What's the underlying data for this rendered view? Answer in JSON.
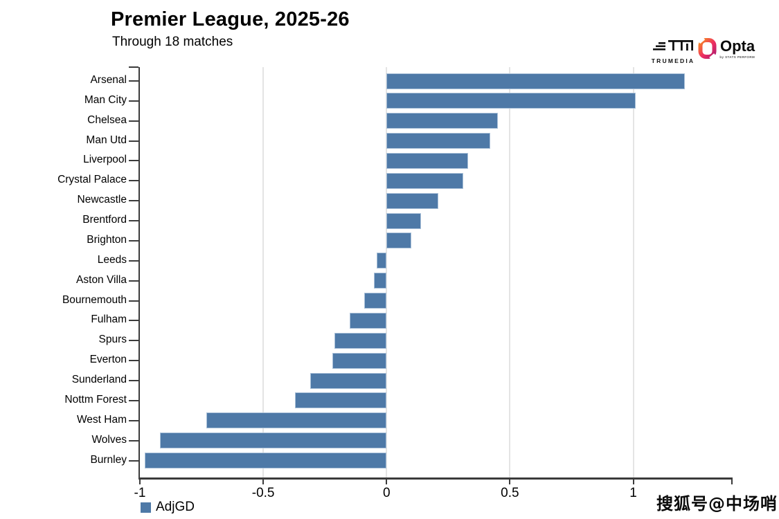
{
  "title": "Premier League, 2025-26",
  "subtitle": "Through 18 matches",
  "branding": {
    "trumedia_label": "TRUMEDIA",
    "opta_label": "Opta",
    "opta_sub": "by STATS PERFORM"
  },
  "legend": {
    "label": "AdjGD",
    "color": "#4e79a7"
  },
  "watermark": "搜狐号@中场哨",
  "chart_data": {
    "type": "bar",
    "orientation": "horizontal",
    "title": "Premier League, 2025-26",
    "subtitle": "Through 18 matches",
    "categories": [
      "Arsenal",
      "Man City",
      "Chelsea",
      "Man Utd",
      "Liverpool",
      "Crystal Palace",
      "Newcastle",
      "Brentford",
      "Brighton",
      "Leeds",
      "Aston Villa",
      "Bournemouth",
      "Fulham",
      "Spurs",
      "Everton",
      "Sunderland",
      "Nottm Forest",
      "West Ham",
      "Wolves",
      "Burnley"
    ],
    "series": [
      {
        "name": "AdjGD",
        "values": [
          1.21,
          1.01,
          0.45,
          0.42,
          0.33,
          0.31,
          0.21,
          0.14,
          0.1,
          -0.04,
          -0.05,
          -0.09,
          -0.15,
          -0.21,
          -0.22,
          -0.31,
          -0.37,
          -0.73,
          -0.92,
          -0.98
        ]
      }
    ],
    "xlim": [
      -1,
      1.4
    ],
    "x_ticks": [
      -1,
      -0.5,
      0,
      0.5,
      1
    ],
    "x_tick_labels": [
      "-1",
      "-0.5",
      "0",
      "0.5",
      "1"
    ],
    "grid_ticks": [
      -0.5,
      0,
      0.5,
      1
    ],
    "bar_color": "#4e79a7",
    "bar_border_color": "#aac1d9",
    "grid": true,
    "legend_position": "bottom-left"
  }
}
